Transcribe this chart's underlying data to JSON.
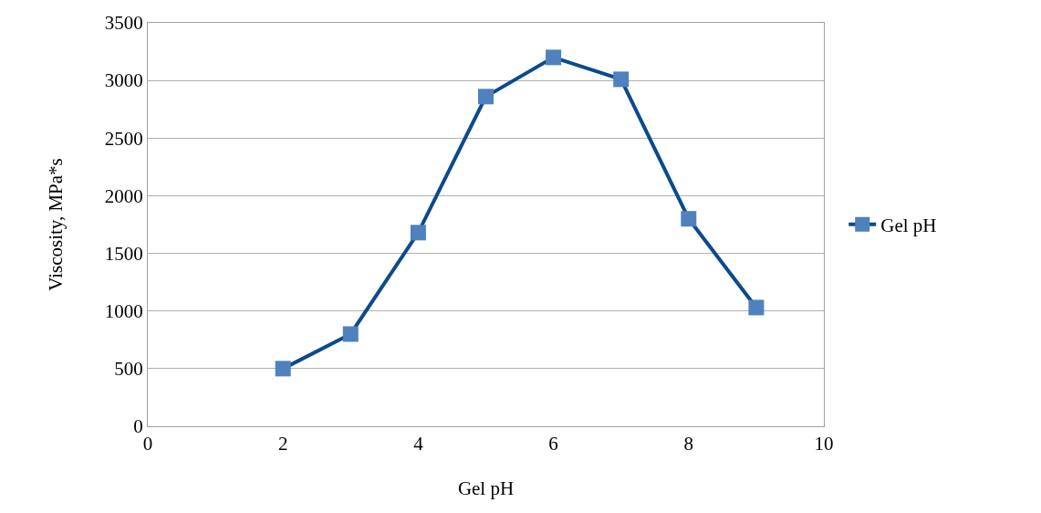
{
  "chart_data": {
    "type": "line",
    "xlabel": "Gel pH",
    "ylabel": "Viscosity, MPa*s",
    "x": [
      2,
      3,
      4,
      5,
      6,
      7,
      8,
      9
    ],
    "series": [
      {
        "name": "Gel pH",
        "color": "#0b4a8b",
        "colors": [
          "#4f81bd",
          "#4f81bd",
          "#4f81bd",
          "#4f81bd",
          "#4f81bd",
          "#4f81bd",
          "#4f81bd",
          "#4f81bd"
        ],
        "values": [
          500,
          800,
          1680,
          2860,
          3200,
          3010,
          1800,
          1030
        ]
      }
    ],
    "xlim": [
      0,
      10
    ],
    "xticks": [
      0,
      2,
      4,
      6,
      8,
      10
    ],
    "ylim": [
      0,
      3500
    ],
    "yticks": [
      0,
      500,
      1000,
      1500,
      2000,
      2500,
      3000,
      3500
    ],
    "grid": "y",
    "legend": "right",
    "marker": "square",
    "line_style": "solid"
  }
}
